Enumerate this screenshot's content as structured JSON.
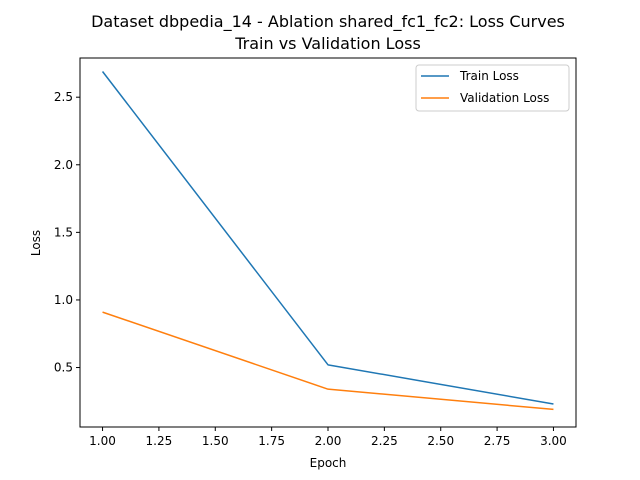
{
  "chart_data": {
    "type": "line",
    "title": "Dataset dbpedia_14 - Ablation shared_fc1_fc2: Loss Curves",
    "subtitle": "Train vs Validation Loss",
    "xlabel": "Epoch",
    "ylabel": "Loss",
    "xlim": [
      0.9,
      3.1
    ],
    "ylim": [
      0.06,
      2.79
    ],
    "xticks": [
      1.0,
      1.25,
      1.5,
      1.75,
      2.0,
      2.25,
      2.5,
      2.75,
      3.0
    ],
    "xtick_labels": [
      "1.00",
      "1.25",
      "1.50",
      "1.75",
      "2.00",
      "2.25",
      "2.50",
      "2.75",
      "3.00"
    ],
    "yticks": [
      0.5,
      1.0,
      1.5,
      2.0,
      2.5
    ],
    "ytick_labels": [
      "0.5",
      "1.0",
      "1.5",
      "2.0",
      "2.5"
    ],
    "grid": false,
    "legend_position": "top-right",
    "series": [
      {
        "name": "Train Loss",
        "color": "#1f77b4",
        "x": [
          1,
          2,
          3
        ],
        "y": [
          2.69,
          0.52,
          0.23
        ]
      },
      {
        "name": "Validation Loss",
        "color": "#ff7f0e",
        "x": [
          1,
          2,
          3
        ],
        "y": [
          0.91,
          0.34,
          0.19
        ]
      }
    ]
  }
}
